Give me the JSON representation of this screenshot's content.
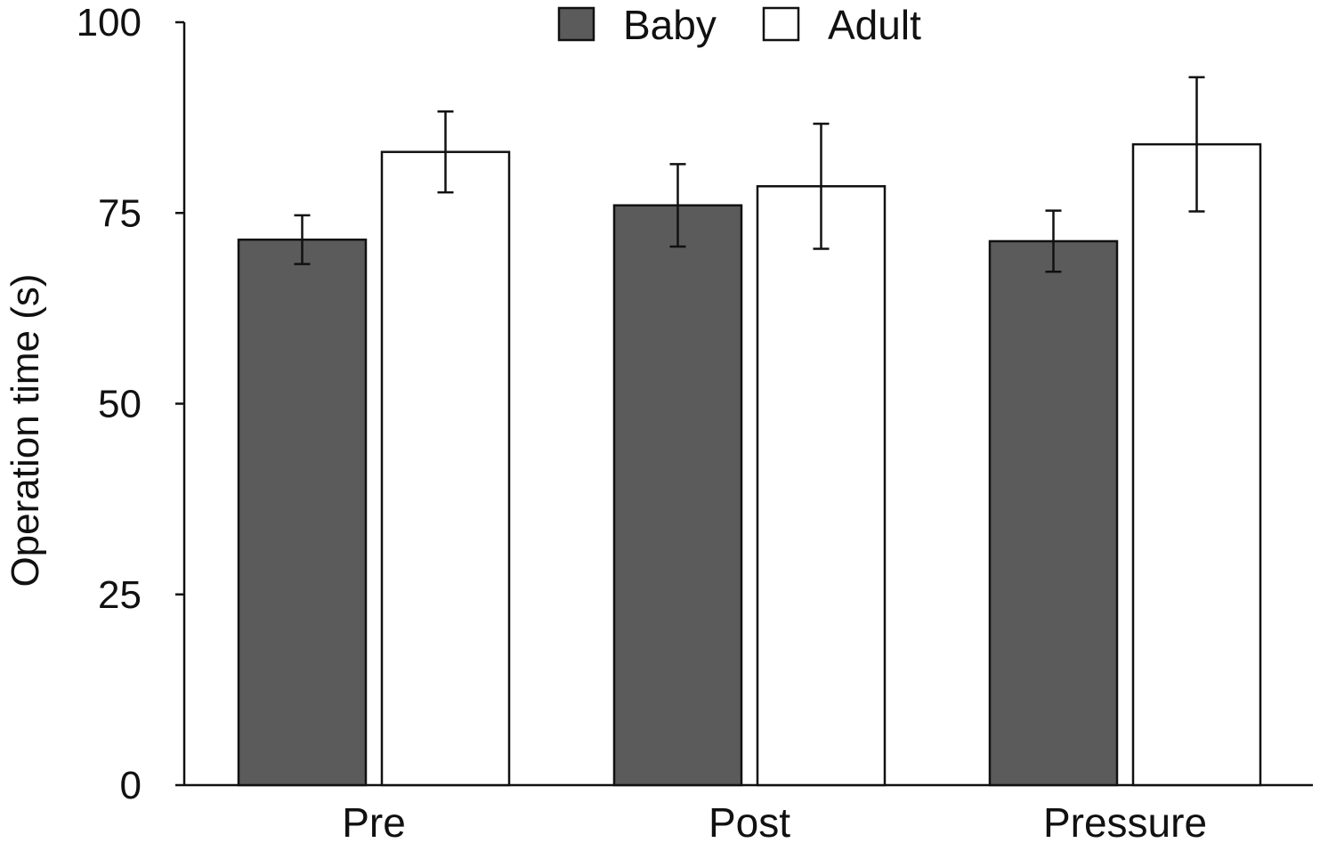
{
  "chart_data": {
    "type": "bar",
    "title": "",
    "xlabel": "",
    "ylabel": "Operation time (s)",
    "ylim": [
      0,
      100
    ],
    "yticks": [
      0,
      25,
      50,
      75,
      100
    ],
    "categories": [
      "Pre",
      "Post",
      "Pressure"
    ],
    "series": [
      {
        "name": "Baby",
        "color": "#5b5b5b",
        "values": [
          71.5,
          76.0,
          71.3
        ],
        "error": [
          3.2,
          5.4,
          4.0
        ]
      },
      {
        "name": "Adult",
        "color": "#ffffff",
        "values": [
          83.0,
          78.5,
          84.0
        ],
        "error": [
          5.3,
          8.2,
          8.8
        ]
      }
    ],
    "legend": "top-center",
    "grid": false,
    "error_bars": true
  }
}
